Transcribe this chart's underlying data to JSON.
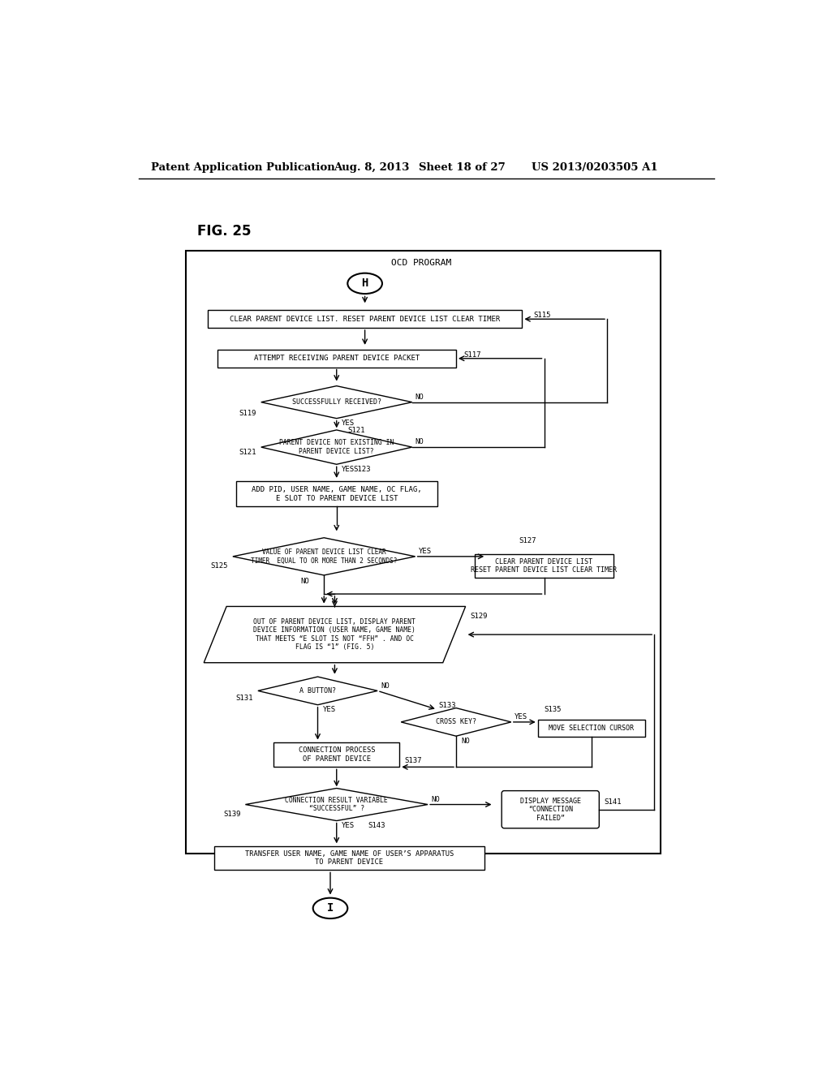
{
  "title_header": "Patent Application Publication",
  "date": "Aug. 8, 2013",
  "sheet": "Sheet 18 of 27",
  "patent_num": "US 2013/0203505 A1",
  "fig_label": "FIG. 25",
  "diagram_title": "OCD PROGRAM",
  "bg_color": "#ffffff"
}
